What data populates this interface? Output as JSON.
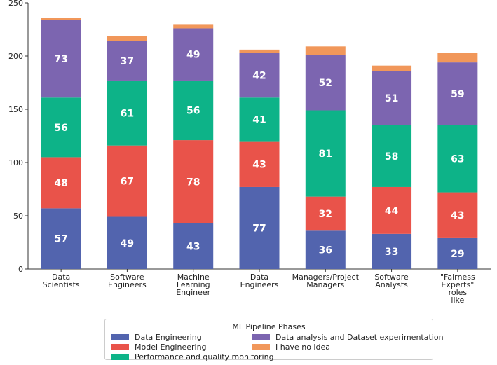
{
  "chart_data": {
    "type": "bar",
    "stacked": true,
    "title": "",
    "xlabel": "",
    "ylabel": "",
    "ylim": [
      0,
      250
    ],
    "yticks": [
      0,
      50,
      100,
      150,
      200,
      250
    ],
    "categories": [
      [
        "Data",
        "Scientists"
      ],
      [
        "Software",
        "Engineers"
      ],
      [
        "Machine",
        "Learning",
        "Engineer"
      ],
      [
        "Data",
        "Engineers"
      ],
      [
        "Managers/Project",
        "Managers"
      ],
      [
        "Software",
        "Analysts"
      ],
      [
        "\"Fairness",
        "Experts\"",
        "roles",
        "like"
      ]
    ],
    "series": [
      {
        "name": "Data Engineering",
        "color": "#5264ae",
        "values": [
          57,
          49,
          43,
          77,
          36,
          33,
          29
        ],
        "show_labels": true
      },
      {
        "name": "Model Engineering",
        "color": "#e9534a",
        "values": [
          48,
          67,
          78,
          43,
          32,
          44,
          43
        ],
        "show_labels": true
      },
      {
        "name": "Performance and quality monitoring",
        "color": "#0db388",
        "values": [
          56,
          61,
          56,
          41,
          81,
          58,
          63
        ],
        "show_labels": true
      },
      {
        "name": "Data analysis and Dataset experimentation",
        "color": "#7c65b0",
        "values": [
          73,
          37,
          49,
          42,
          52,
          51,
          59
        ],
        "show_labels": true
      },
      {
        "name": "I have no idea",
        "color": "#f1975a",
        "values": [
          2,
          5,
          4,
          3,
          8,
          5,
          9
        ],
        "show_labels": false
      }
    ],
    "legend": {
      "title": "ML Pipeline Phases",
      "placement": "bottom-center"
    }
  }
}
